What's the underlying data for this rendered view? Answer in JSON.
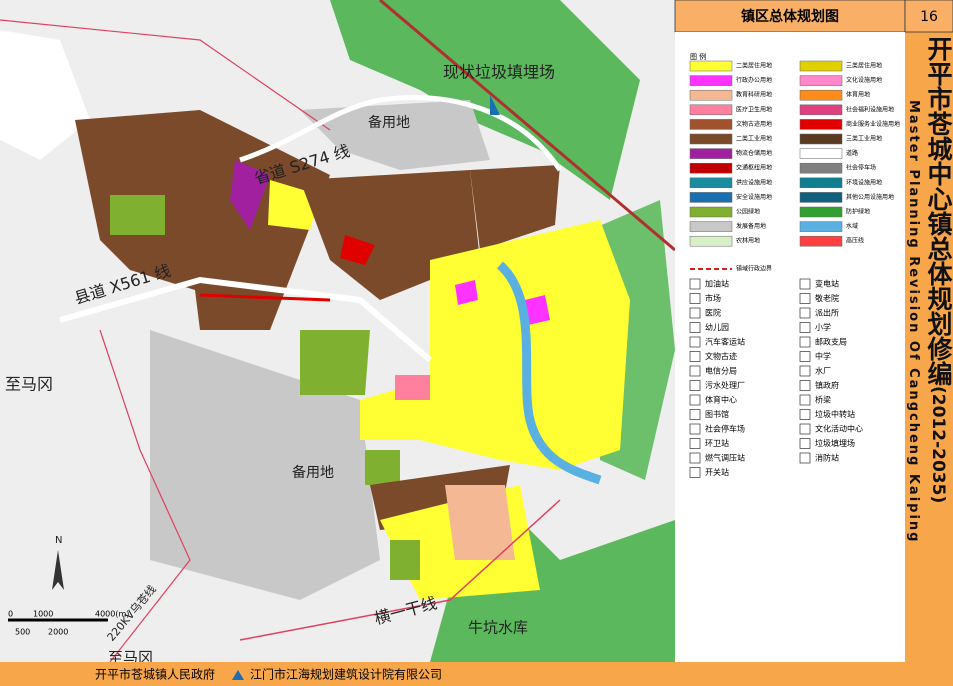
{
  "header": {
    "title": "镇区总体规划图",
    "page": "16"
  },
  "side_title": {
    "chinese": "开平市苍城中心镇总体规划修编",
    "years": "(2012-2035)",
    "english": "Master Planning Revision Of Cangcheng Kaiping"
  },
  "legend": {
    "heading": "图 例",
    "land_use_left": [
      {
        "label": "二类居住用地",
        "color": "#ffff33"
      },
      {
        "label": "行政办公用地",
        "color": "#ff33ff"
      },
      {
        "label": "教育科研用地",
        "color": "#f5b894"
      },
      {
        "label": "医疗卫生用地",
        "color": "#ff7f9f"
      },
      {
        "label": "文物古迹用地",
        "color": "#a0522d"
      },
      {
        "label": "二类工业用地",
        "color": "#7a4a2a"
      },
      {
        "label": "物流仓储用地",
        "color": "#a020a0"
      },
      {
        "label": "交通枢纽用地",
        "color": "#c00000"
      },
      {
        "label": "供应设施用地",
        "color": "#1a8ca0"
      },
      {
        "label": "安全设施用地",
        "color": "#1a6fb0"
      },
      {
        "label": "公园绿地",
        "color": "#7fb030"
      },
      {
        "label": "发展备用地",
        "color": "#c8c8c8"
      },
      {
        "label": "农林用地",
        "color": "#d8f0c8"
      }
    ],
    "land_use_right": [
      {
        "label": "三类居住用地",
        "color": "#e0d000"
      },
      {
        "label": "文化设施用地",
        "color": "#ff88cc"
      },
      {
        "label": "体育用地",
        "color": "#ff8c1a"
      },
      {
        "label": "社会福利设施用地",
        "color": "#e04080"
      },
      {
        "label": "商业服务业设施用地",
        "color": "#e00000"
      },
      {
        "label": "三类工业用地",
        "color": "#5a3a20"
      },
      {
        "label": "道路",
        "color": "#ffffff"
      },
      {
        "label": "社会停车场",
        "color": "#808080"
      },
      {
        "label": "环境设施用地",
        "color": "#0f7f8f"
      },
      {
        "label": "其他公用设施用地",
        "color": "#106080"
      },
      {
        "label": "防护绿地",
        "color": "#30a030"
      },
      {
        "label": "水域",
        "color": "#5ab0e0"
      },
      {
        "label": "高压线",
        "color": "#ff4040"
      }
    ],
    "boundary": "镇域行政边界",
    "facilities_left": [
      "加油站",
      "市场",
      "医院",
      "幼儿园",
      "汽车客运站",
      "文物古迹",
      "电信分局",
      "污水处理厂",
      "体育中心",
      "图书馆",
      "社会停车场",
      "环卫站",
      "燃气调压站",
      "开关站"
    ],
    "facilities_right": [
      "变电站",
      "敬老院",
      "派出所",
      "小学",
      "邮政支局",
      "中学",
      "水厂",
      "镇政府",
      "桥梁",
      "垃圾中转站",
      "文化活动中心",
      "垃圾填埋场",
      "消防站"
    ]
  },
  "map_labels": {
    "landfill": "现状垃圾填埋场",
    "reserve_north": "备用地",
    "reserve_south": "备用地",
    "s274": "省道 S274 线",
    "x561": "县道 X561 线",
    "to_magang_west": "至马冈",
    "to_magang_south": "至马冈",
    "hengyi": "横一干线",
    "niukeng": "牛坑水库",
    "power_line": "220KV乌苍线",
    "north": "N",
    "scale_top": [
      "0",
      "1000",
      "4000(m)"
    ],
    "scale_bottom": [
      "500",
      "2000"
    ]
  },
  "footer": {
    "left": "开平市苍城镇人民政府",
    "right": "江门市江海规划建筑设计院有限公司"
  }
}
